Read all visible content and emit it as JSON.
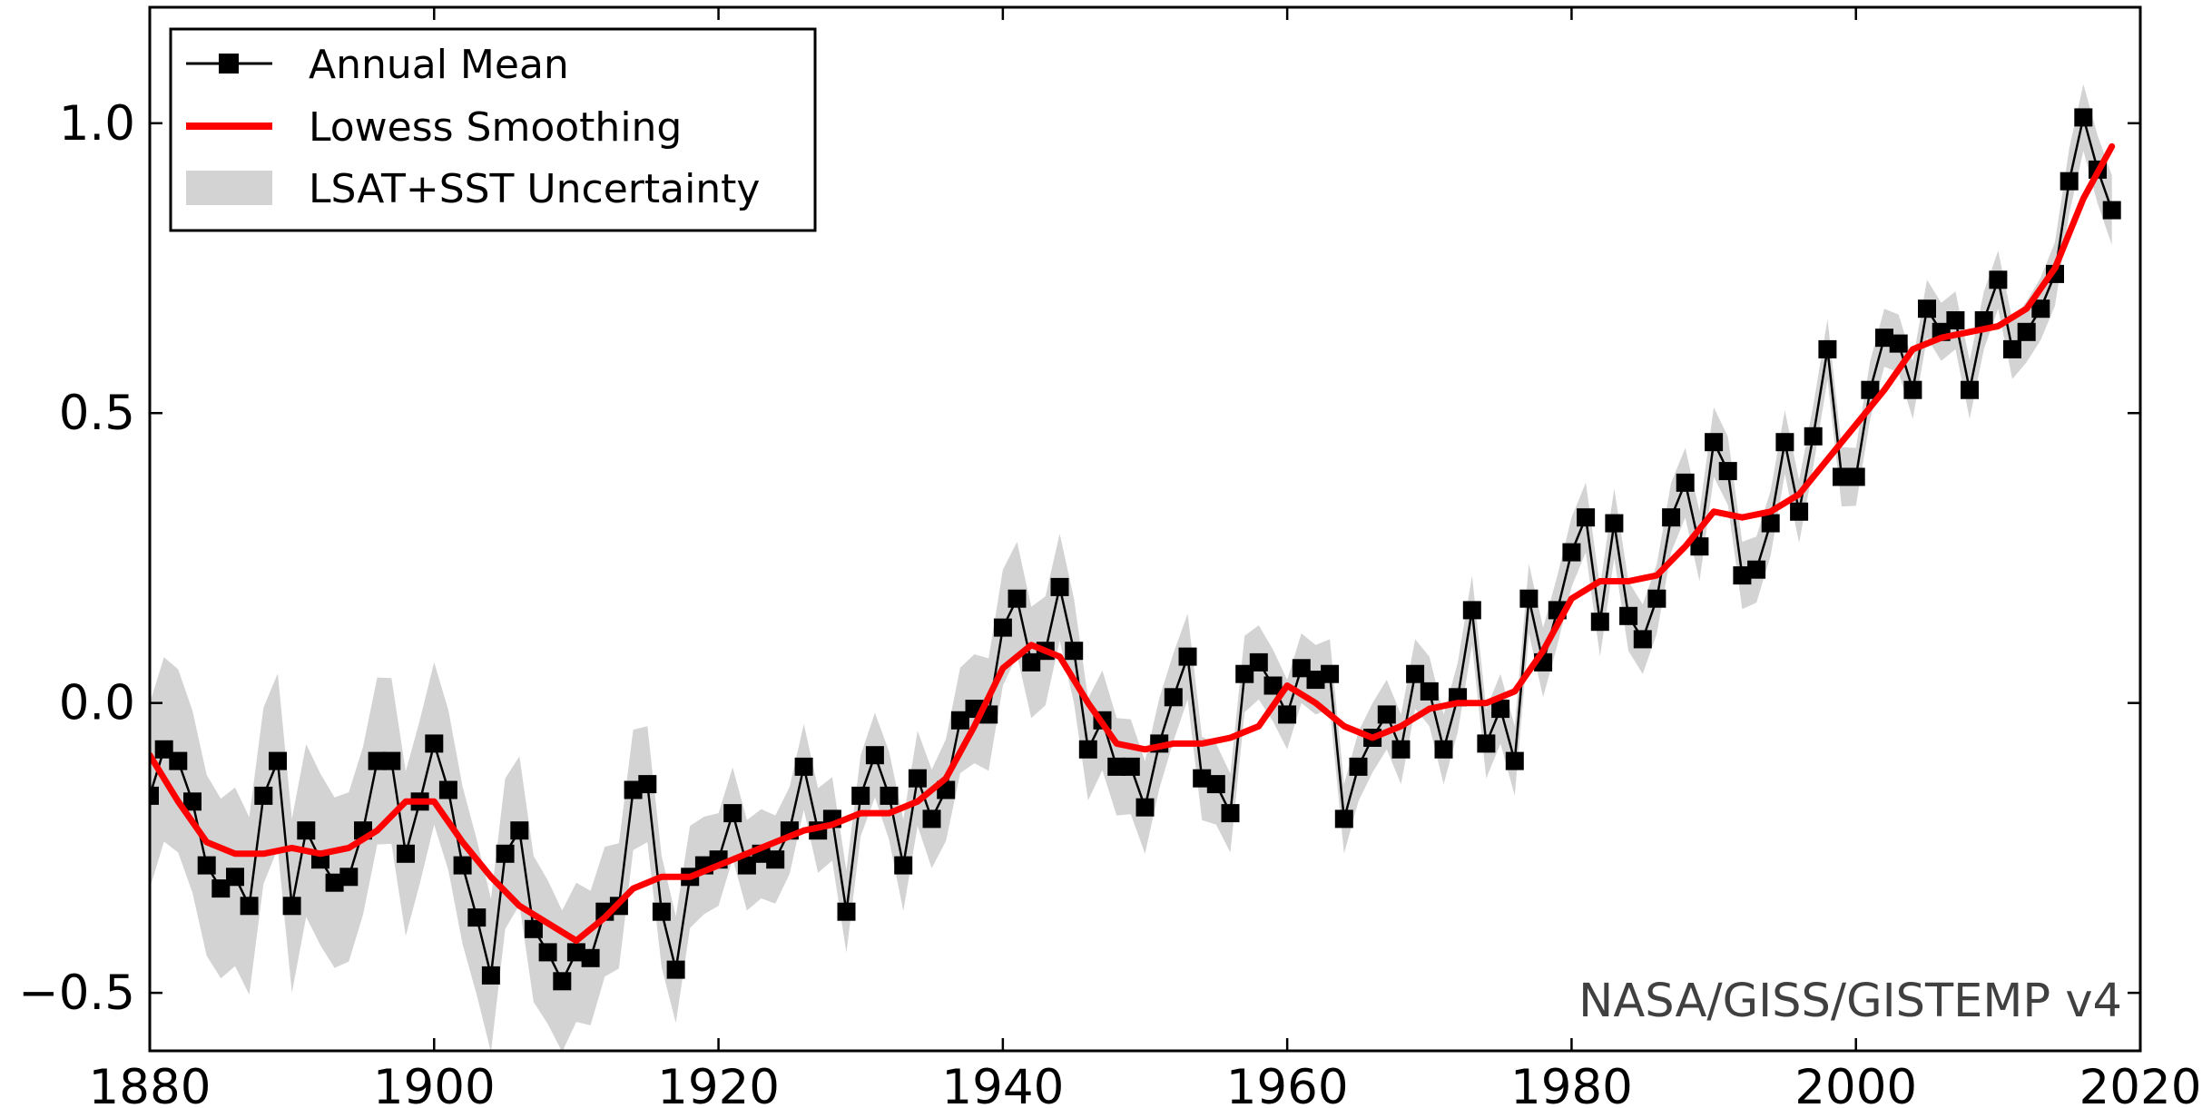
{
  "chart_data": {
    "type": "line",
    "title": "",
    "xlabel": "",
    "ylabel": "",
    "xlim": [
      1880,
      2020
    ],
    "ylim": [
      -0.6,
      1.2
    ],
    "x_ticks": [
      1880,
      1900,
      1920,
      1940,
      1960,
      1980,
      2000,
      2020
    ],
    "y_ticks": [
      -0.5,
      0.0,
      0.5,
      1.0
    ],
    "x_tick_labels": [
      "1880",
      "1900",
      "1920",
      "1940",
      "1960",
      "1980",
      "2000",
      "2020"
    ],
    "y_tick_labels": [
      "−0.5",
      "0.0",
      "0.5",
      "1.0"
    ],
    "grid": false,
    "legend": {
      "position": "top-left",
      "entries": [
        "Annual Mean",
        "Lowess Smoothing",
        "LSAT+SST Uncertainty"
      ]
    },
    "annotation": "NASA/GISS/GISTEMP v4",
    "colors": {
      "annual_mean": "#000000",
      "lowess": "#ff0000",
      "uncertainty": "#d3d3d3"
    },
    "series": [
      {
        "name": "Annual Mean",
        "x_start": 1880,
        "values": [
          -0.16,
          -0.08,
          -0.1,
          -0.17,
          -0.28,
          -0.32,
          -0.3,
          -0.35,
          -0.16,
          -0.1,
          -0.35,
          -0.22,
          -0.27,
          -0.31,
          -0.3,
          -0.22,
          -0.1,
          -0.1,
          -0.26,
          -0.17,
          -0.07,
          -0.15,
          -0.28,
          -0.37,
          -0.47,
          -0.26,
          -0.22,
          -0.39,
          -0.43,
          -0.48,
          -0.43,
          -0.44,
          -0.36,
          -0.35,
          -0.15,
          -0.14,
          -0.36,
          -0.46,
          -0.3,
          -0.28,
          -0.27,
          -0.19,
          -0.28,
          -0.26,
          -0.27,
          -0.22,
          -0.11,
          -0.22,
          -0.2,
          -0.36,
          -0.16,
          -0.09,
          -0.16,
          -0.28,
          -0.13,
          -0.2,
          -0.15,
          -0.03,
          -0.01,
          -0.02,
          0.13,
          0.18,
          0.07,
          0.09,
          0.2,
          0.09,
          -0.08,
          -0.03,
          -0.11,
          -0.11,
          -0.18,
          -0.07,
          0.01,
          0.08,
          -0.13,
          -0.14,
          -0.19,
          0.05,
          0.07,
          0.03,
          -0.02,
          0.06,
          0.04,
          0.05,
          -0.2,
          -0.11,
          -0.06,
          -0.02,
          -0.08,
          0.05,
          0.02,
          -0.08,
          0.01,
          0.16,
          -0.07,
          -0.01,
          -0.1,
          0.18,
          0.07,
          0.16,
          0.26,
          0.32,
          0.14,
          0.31,
          0.15,
          0.11,
          0.18,
          0.32,
          0.38,
          0.27,
          0.45,
          0.4,
          0.22,
          0.23,
          0.31,
          0.45,
          0.33,
          0.46,
          0.61,
          0.39,
          0.39,
          0.54,
          0.63,
          0.62,
          0.54,
          0.68,
          0.64,
          0.66,
          0.54,
          0.66,
          0.73,
          0.61,
          0.64,
          0.68,
          0.74,
          0.9,
          1.01,
          0.92,
          0.85
        ]
      },
      {
        "name": "Lowess Smoothing",
        "x": [
          1880,
          1882,
          1884,
          1886,
          1888,
          1890,
          1892,
          1894,
          1896,
          1898,
          1900,
          1902,
          1904,
          1906,
          1908,
          1910,
          1912,
          1914,
          1916,
          1918,
          1920,
          1922,
          1924,
          1926,
          1928,
          1930,
          1932,
          1934,
          1936,
          1938,
          1940,
          1942,
          1944,
          1946,
          1948,
          1950,
          1952,
          1954,
          1956,
          1958,
          1960,
          1962,
          1964,
          1966,
          1968,
          1970,
          1972,
          1974,
          1976,
          1978,
          1980,
          1982,
          1984,
          1986,
          1988,
          1990,
          1992,
          1994,
          1996,
          1998,
          2000,
          2002,
          2004,
          2006,
          2008,
          2010,
          2012,
          2014,
          2016,
          2018
        ],
        "values": [
          -0.09,
          -0.17,
          -0.24,
          -0.26,
          -0.26,
          -0.25,
          -0.26,
          -0.25,
          -0.22,
          -0.17,
          -0.17,
          -0.24,
          -0.3,
          -0.35,
          -0.38,
          -0.41,
          -0.37,
          -0.32,
          -0.3,
          -0.3,
          -0.28,
          -0.26,
          -0.24,
          -0.22,
          -0.21,
          -0.19,
          -0.19,
          -0.17,
          -0.13,
          -0.04,
          0.06,
          0.1,
          0.08,
          0.0,
          -0.07,
          -0.08,
          -0.07,
          -0.07,
          -0.06,
          -0.04,
          0.03,
          0.0,
          -0.04,
          -0.06,
          -0.04,
          -0.01,
          0.0,
          0.0,
          0.02,
          0.09,
          0.18,
          0.21,
          0.21,
          0.22,
          0.27,
          0.33,
          0.32,
          0.33,
          0.36,
          0.42,
          0.48,
          0.54,
          0.61,
          0.63,
          0.64,
          0.65,
          0.68,
          0.75,
          0.87,
          0.96
        ]
      },
      {
        "name": "LSAT+SST Uncertainty",
        "x": [
          1880,
          1890,
          1900,
          1910,
          1920,
          1930,
          1940,
          1950,
          1960,
          1970,
          1980,
          1990,
          2000,
          2010,
          2018
        ],
        "half_width": [
          0.16,
          0.15,
          0.14,
          0.12,
          0.08,
          0.07,
          0.1,
          0.08,
          0.06,
          0.06,
          0.06,
          0.06,
          0.05,
          0.05,
          0.06
        ]
      }
    ]
  }
}
